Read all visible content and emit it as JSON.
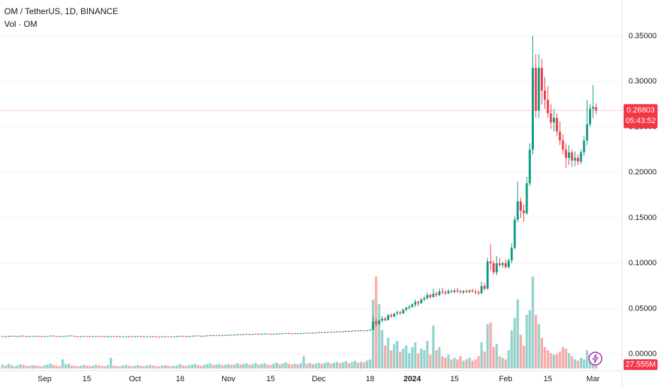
{
  "chart_data": {
    "type": "candlestick",
    "title": "OM / TetherUS, 1D, BINANCE",
    "subtitle": "Vol · OM",
    "up_color": "#089981",
    "down_color": "#f23645",
    "volume_up_color": "#92d2cc",
    "volume_down_color": "#f7a9a7",
    "grid": true,
    "ylim": [
      -0.015,
      0.385
    ],
    "yticks": [
      {
        "value": 0,
        "label": "0.00000"
      },
      {
        "value": 0.05,
        "label": "0.05000"
      },
      {
        "value": 0.1,
        "label": "0.10000"
      },
      {
        "value": 0.15,
        "label": "0.15000"
      },
      {
        "value": 0.2,
        "label": "0.20000"
      },
      {
        "value": 0.25,
        "label": "0.25000"
      },
      {
        "value": 0.3,
        "label": "0.30000"
      },
      {
        "value": 0.35,
        "label": "0.35000"
      }
    ],
    "countdown": "05:43:52",
    "volume_last_label": "27.555M",
    "categories": [
      null,
      null,
      null,
      null,
      null,
      null,
      null,
      null,
      null,
      null,
      null,
      null,
      null,
      null,
      "Sep",
      null,
      null,
      null,
      null,
      null,
      null,
      null,
      null,
      null,
      null,
      null,
      null,
      null,
      "15",
      null,
      null,
      null,
      null,
      null,
      null,
      null,
      null,
      null,
      null,
      null,
      null,
      null,
      null,
      null,
      "Oct",
      null,
      null,
      null,
      null,
      null,
      null,
      null,
      null,
      null,
      null,
      null,
      null,
      null,
      null,
      "16",
      null,
      null,
      null,
      null,
      null,
      null,
      null,
      null,
      null,
      null,
      null,
      null,
      null,
      null,
      null,
      "Nov",
      null,
      null,
      null,
      null,
      null,
      null,
      null,
      null,
      null,
      null,
      null,
      null,
      null,
      "15",
      null,
      null,
      null,
      null,
      null,
      null,
      null,
      null,
      null,
      null,
      null,
      null,
      null,
      null,
      null,
      "Dec",
      null,
      null,
      null,
      null,
      null,
      null,
      null,
      null,
      null,
      null,
      null,
      null,
      null,
      null,
      null,
      null,
      "18",
      null,
      null,
      null,
      null,
      null,
      null,
      null,
      null,
      null,
      null,
      null,
      null,
      null,
      "2024",
      null,
      null,
      null,
      null,
      null,
      null,
      null,
      null,
      null,
      null,
      null,
      null,
      null,
      "15",
      null,
      null,
      null,
      null,
      null,
      null,
      null,
      null,
      null,
      null,
      null,
      null,
      null,
      null,
      null,
      null,
      "Feb",
      null,
      null,
      null,
      null,
      null,
      null,
      null,
      null,
      null,
      null,
      null,
      null,
      null,
      "15",
      null,
      null,
      null,
      null,
      null,
      null,
      null,
      null,
      null,
      null,
      null,
      null,
      null,
      null,
      "Mar",
      null
    ],
    "open": [
      0.0194,
      0.0196,
      0.0193,
      0.0199,
      0.0201,
      0.0195,
      0.0198,
      0.0202,
      0.0199,
      0.0194,
      0.0197,
      0.02,
      0.0198,
      0.0195,
      0.0193,
      0.0196,
      0.0199,
      0.0203,
      0.02,
      0.0197,
      0.0194,
      0.0198,
      0.0201,
      0.0204,
      0.0199,
      0.0196,
      0.0193,
      0.0195,
      0.0198,
      0.0196,
      0.0192,
      0.0195,
      0.0199,
      0.0197,
      0.0194,
      0.0191,
      0.0195,
      0.0198,
      0.0196,
      0.0193,
      0.019,
      0.0194,
      0.0197,
      0.0195,
      0.0192,
      0.0195,
      0.0198,
      0.0194,
      0.0191,
      0.0194,
      0.0197,
      0.0195,
      0.0192,
      0.0189,
      0.0193,
      0.0196,
      0.0194,
      0.0191,
      0.0194,
      0.0197,
      0.02,
      0.0197,
      0.0194,
      0.0197,
      0.0201,
      0.0204,
      0.0201,
      0.0198,
      0.0202,
      0.0205,
      0.0208,
      0.0204,
      0.0207,
      0.021,
      0.0206,
      0.0209,
      0.0212,
      0.0209,
      0.0213,
      0.0217,
      0.0214,
      0.0218,
      0.0221,
      0.0217,
      0.022,
      0.0224,
      0.022,
      0.0223,
      0.0226,
      0.0222,
      0.0219,
      0.0223,
      0.0227,
      0.0224,
      0.0228,
      0.0232,
      0.0228,
      0.0225,
      0.0229,
      0.0226,
      0.023,
      0.0234,
      0.0231,
      0.0235,
      0.0232,
      0.0236,
      0.024,
      0.0237,
      0.0241,
      0.0245,
      0.0242,
      0.0246,
      0.025,
      0.0247,
      0.0251,
      0.0255,
      0.0252,
      0.0256,
      0.026,
      0.0257,
      0.0261,
      0.0258,
      0.0262,
      0.0268,
      0.036,
      0.033,
      0.037,
      0.039,
      0.0375,
      0.043,
      0.0415,
      0.0445,
      0.046,
      0.045,
      0.049,
      0.051,
      0.052,
      0.0545,
      0.0575,
      0.056,
      0.06,
      0.0615,
      0.065,
      0.063,
      0.0665,
      0.065,
      0.069,
      0.068,
      0.067,
      0.0695,
      0.0685,
      0.07,
      0.069,
      0.068,
      0.0695,
      0.0685,
      0.07,
      0.069,
      0.068,
      0.067,
      0.075,
      0.072,
      0.102,
      0.1,
      0.09,
      0.1,
      0.098,
      0.1,
      0.096,
      0.103,
      0.117,
      0.148,
      0.168,
      0.158,
      0.155,
      0.188,
      0.225,
      0.315,
      0.268,
      0.315,
      0.29,
      0.28,
      0.265,
      0.255,
      0.26,
      0.245,
      0.235,
      0.225,
      0.216,
      0.222,
      0.213,
      0.216,
      0.212,
      0.222,
      0.235,
      0.253,
      0.27,
      0.272
    ],
    "high": [
      0.0199,
      0.0199,
      0.0202,
      0.0204,
      0.0204,
      0.0201,
      0.0205,
      0.0205,
      0.0202,
      0.02,
      0.0203,
      0.0203,
      0.0201,
      0.0198,
      0.0199,
      0.0202,
      0.0206,
      0.0206,
      0.0203,
      0.02,
      0.0201,
      0.0204,
      0.0207,
      0.0207,
      0.0202,
      0.0199,
      0.0198,
      0.0201,
      0.0201,
      0.0199,
      0.0198,
      0.0202,
      0.0202,
      0.02,
      0.0197,
      0.0198,
      0.0201,
      0.0201,
      0.0199,
      0.0196,
      0.0197,
      0.02,
      0.02,
      0.0198,
      0.0198,
      0.0201,
      0.0201,
      0.0197,
      0.0197,
      0.02,
      0.02,
      0.0198,
      0.0195,
      0.0196,
      0.0199,
      0.0199,
      0.0197,
      0.0197,
      0.02,
      0.0203,
      0.0203,
      0.02,
      0.02,
      0.0204,
      0.0207,
      0.0207,
      0.0204,
      0.0205,
      0.0208,
      0.0211,
      0.0211,
      0.021,
      0.0213,
      0.0213,
      0.0212,
      0.0215,
      0.0215,
      0.0216,
      0.022,
      0.022,
      0.0221,
      0.0224,
      0.0224,
      0.0223,
      0.0227,
      0.0227,
      0.0226,
      0.0229,
      0.0229,
      0.0225,
      0.0226,
      0.023,
      0.023,
      0.0231,
      0.0235,
      0.0235,
      0.0231,
      0.0232,
      0.0232,
      0.0233,
      0.0237,
      0.0237,
      0.0238,
      0.0238,
      0.0239,
      0.0243,
      0.0243,
      0.0244,
      0.0248,
      0.0248,
      0.0249,
      0.0253,
      0.0253,
      0.0254,
      0.0258,
      0.0258,
      0.0259,
      0.0263,
      0.0263,
      0.0264,
      0.0264,
      0.0265,
      0.0275,
      0.042,
      0.0395,
      0.038,
      0.042,
      0.041,
      0.044,
      0.045,
      0.0455,
      0.048,
      0.0475,
      0.05,
      0.052,
      0.054,
      0.056,
      0.06,
      0.059,
      0.062,
      0.064,
      0.068,
      0.0665,
      0.072,
      0.069,
      0.072,
      0.073,
      0.0705,
      0.0715,
      0.071,
      0.072,
      0.073,
      0.071,
      0.0705,
      0.0715,
      0.071,
      0.072,
      0.071,
      0.07,
      0.08,
      0.078,
      0.106,
      0.121,
      0.103,
      0.108,
      0.106,
      0.102,
      0.104,
      0.105,
      0.122,
      0.152,
      0.19,
      0.172,
      0.165,
      0.195,
      0.232,
      0.35,
      0.33,
      0.33,
      0.325,
      0.305,
      0.295,
      0.275,
      0.27,
      0.265,
      0.256,
      0.242,
      0.232,
      0.23,
      0.225,
      0.223,
      0.22,
      0.225,
      0.24,
      0.28,
      0.275,
      0.296,
      0.276
    ],
    "low": [
      0.0191,
      0.019,
      0.019,
      0.0196,
      0.0192,
      0.0192,
      0.0195,
      0.0196,
      0.0191,
      0.0191,
      0.0194,
      0.0195,
      0.0192,
      0.019,
      0.019,
      0.0193,
      0.0196,
      0.0197,
      0.0194,
      0.0191,
      0.0191,
      0.0195,
      0.0198,
      0.0196,
      0.0193,
      0.019,
      0.019,
      0.0192,
      0.0193,
      0.0189,
      0.0189,
      0.0192,
      0.0194,
      0.0191,
      0.0188,
      0.0188,
      0.0192,
      0.0193,
      0.019,
      0.0187,
      0.0187,
      0.0191,
      0.0192,
      0.0189,
      0.0189,
      0.0192,
      0.0191,
      0.0188,
      0.0188,
      0.0191,
      0.0192,
      0.0189,
      0.0186,
      0.0186,
      0.019,
      0.0191,
      0.0188,
      0.0188,
      0.0191,
      0.0194,
      0.0194,
      0.0191,
      0.0191,
      0.0194,
      0.0198,
      0.0198,
      0.0195,
      0.0195,
      0.0199,
      0.0202,
      0.0201,
      0.0201,
      0.0204,
      0.0203,
      0.0203,
      0.0206,
      0.0206,
      0.0206,
      0.021,
      0.0211,
      0.0211,
      0.0215,
      0.0214,
      0.0214,
      0.0217,
      0.0217,
      0.0217,
      0.022,
      0.0219,
      0.0216,
      0.0216,
      0.022,
      0.0221,
      0.0221,
      0.0225,
      0.0225,
      0.0222,
      0.0222,
      0.0223,
      0.0223,
      0.0227,
      0.0228,
      0.0228,
      0.0229,
      0.0229,
      0.0233,
      0.0234,
      0.0234,
      0.0238,
      0.0239,
      0.0239,
      0.0243,
      0.0244,
      0.0244,
      0.0248,
      0.0249,
      0.0249,
      0.0253,
      0.0254,
      0.0254,
      0.0255,
      0.0255,
      0.0258,
      0.0265,
      0.03,
      0.032,
      0.035,
      0.036,
      0.037,
      0.04,
      0.04,
      0.043,
      0.043,
      0.044,
      0.047,
      0.049,
      0.051,
      0.052,
      0.053,
      0.0555,
      0.058,
      0.06,
      0.061,
      0.062,
      0.063,
      0.064,
      0.066,
      0.065,
      0.066,
      0.067,
      0.067,
      0.0675,
      0.0665,
      0.066,
      0.067,
      0.067,
      0.068,
      0.066,
      0.065,
      0.066,
      0.07,
      0.071,
      0.092,
      0.088,
      0.087,
      0.096,
      0.095,
      0.094,
      0.094,
      0.1,
      0.115,
      0.145,
      0.15,
      0.146,
      0.153,
      0.185,
      0.22,
      0.26,
      0.26,
      0.275,
      0.27,
      0.26,
      0.248,
      0.245,
      0.24,
      0.23,
      0.22,
      0.205,
      0.208,
      0.206,
      0.207,
      0.208,
      0.209,
      0.218,
      0.23,
      0.25,
      0.26,
      0.264
    ],
    "close": [
      0.0196,
      0.0193,
      0.0199,
      0.0201,
      0.0195,
      0.0198,
      0.0202,
      0.0199,
      0.0194,
      0.0197,
      0.02,
      0.0198,
      0.0195,
      0.0193,
      0.0196,
      0.0199,
      0.0203,
      0.02,
      0.0197,
      0.0194,
      0.0198,
      0.0201,
      0.0204,
      0.0199,
      0.0196,
      0.0193,
      0.0195,
      0.0198,
      0.0196,
      0.0192,
      0.0195,
      0.0199,
      0.0197,
      0.0194,
      0.0191,
      0.0195,
      0.0198,
      0.0196,
      0.0193,
      0.019,
      0.0194,
      0.0197,
      0.0195,
      0.0192,
      0.0195,
      0.0198,
      0.0194,
      0.0191,
      0.0194,
      0.0197,
      0.0195,
      0.0192,
      0.0189,
      0.0193,
      0.0196,
      0.0194,
      0.0191,
      0.0194,
      0.0197,
      0.02,
      0.0197,
      0.0194,
      0.0197,
      0.0201,
      0.0204,
      0.0201,
      0.0198,
      0.0202,
      0.0205,
      0.0208,
      0.0204,
      0.0207,
      0.021,
      0.0206,
      0.0209,
      0.0212,
      0.0209,
      0.0213,
      0.0217,
      0.0214,
      0.0218,
      0.0221,
      0.0217,
      0.022,
      0.0224,
      0.022,
      0.0223,
      0.0226,
      0.0222,
      0.0219,
      0.0223,
      0.0227,
      0.0224,
      0.0228,
      0.0232,
      0.0228,
      0.0225,
      0.0229,
      0.0226,
      0.023,
      0.0234,
      0.0231,
      0.0235,
      0.0232,
      0.0236,
      0.024,
      0.0237,
      0.0241,
      0.0245,
      0.0242,
      0.0246,
      0.025,
      0.0247,
      0.0251,
      0.0255,
      0.0252,
      0.0256,
      0.026,
      0.0257,
      0.0261,
      0.0258,
      0.0262,
      0.0268,
      0.036,
      0.033,
      0.037,
      0.039,
      0.0375,
      0.043,
      0.0415,
      0.0445,
      0.046,
      0.045,
      0.049,
      0.051,
      0.052,
      0.0545,
      0.0575,
      0.056,
      0.06,
      0.0615,
      0.065,
      0.063,
      0.0665,
      0.065,
      0.069,
      0.068,
      0.067,
      0.0695,
      0.0685,
      0.07,
      0.069,
      0.068,
      0.0695,
      0.0685,
      0.07,
      0.069,
      0.068,
      0.067,
      0.075,
      0.072,
      0.102,
      0.1,
      0.09,
      0.1,
      0.098,
      0.1,
      0.096,
      0.103,
      0.117,
      0.148,
      0.168,
      0.158,
      0.155,
      0.188,
      0.225,
      0.315,
      0.268,
      0.315,
      0.29,
      0.28,
      0.265,
      0.255,
      0.26,
      0.245,
      0.235,
      0.225,
      0.216,
      0.222,
      0.213,
      0.216,
      0.212,
      0.222,
      0.235,
      0.253,
      0.27,
      0.272,
      0.26803
    ],
    "volume": [
      25,
      18,
      30,
      22,
      15,
      20,
      28,
      24,
      18,
      16,
      22,
      20,
      17,
      15,
      20,
      26,
      32,
      22,
      18,
      16,
      60,
      28,
      30,
      20,
      18,
      15,
      17,
      22,
      20,
      16,
      18,
      25,
      20,
      17,
      15,
      22,
      70,
      18,
      16,
      14,
      20,
      24,
      18,
      15,
      18,
      22,
      17,
      15,
      20,
      24,
      19,
      16,
      14,
      20,
      22,
      18,
      15,
      18,
      21,
      30,
      20,
      17,
      22,
      26,
      30,
      22,
      18,
      24,
      28,
      32,
      22,
      26,
      30,
      22,
      25,
      30,
      24,
      28,
      35,
      26,
      30,
      34,
      25,
      28,
      36,
      26,
      30,
      35,
      26,
      22,
      30,
      38,
      28,
      32,
      40,
      30,
      26,
      32,
      28,
      35,
      80,
      30,
      36,
      28,
      34,
      38,
      30,
      36,
      42,
      32,
      38,
      44,
      34,
      40,
      48,
      36,
      42,
      50,
      38,
      44,
      40,
      52,
      60,
      450,
      600,
      420,
      250,
      150,
      200,
      120,
      160,
      180,
      110,
      130,
      150,
      100,
      140,
      170,
      100,
      130,
      120,
      180,
      90,
      280,
      120,
      140,
      80,
      70,
      90,
      60,
      70,
      60,
      80,
      50,
      60,
      70,
      50,
      60,
      80,
      170,
      110,
      290,
      300,
      140,
      160,
      80,
      70,
      60,
      120,
      250,
      330,
      450,
      220,
      150,
      350,
      380,
      600,
      350,
      290,
      200,
      140,
      120,
      100,
      90,
      95,
      110,
      140,
      130,
      100,
      80,
      60,
      50,
      70,
      60,
      120,
      90,
      100,
      27.555
    ]
  }
}
